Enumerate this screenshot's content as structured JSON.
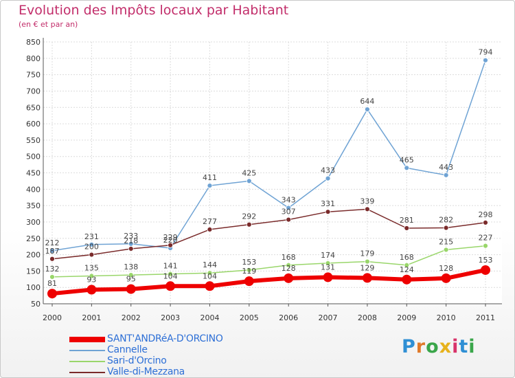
{
  "chart_data": {
    "type": "line",
    "title": "Evolution des Impôts locaux par Habitant",
    "subtitle": "(en € et par an)",
    "x": [
      "2000",
      "2001",
      "2002",
      "2003",
      "2004",
      "2005",
      "2006",
      "2007",
      "2008",
      "2009",
      "2010",
      "2011"
    ],
    "ylim": [
      50,
      850
    ],
    "yticks": [
      50,
      100,
      150,
      200,
      250,
      300,
      350,
      400,
      450,
      500,
      550,
      600,
      650,
      700,
      750,
      800,
      850
    ],
    "grid": true,
    "legend_position": "bottom-left",
    "series": [
      {
        "name": "SANT'ANDRéA-D'ORCINO",
        "color": "#ee0000",
        "width": 6,
        "marker": 7,
        "values": [
          81,
          93,
          95,
          104,
          104,
          119,
          128,
          131,
          129,
          124,
          128,
          153
        ]
      },
      {
        "name": "Cannelle",
        "color": "#6fa3d4",
        "width": 1.5,
        "marker": 3.5,
        "values": [
          212,
          231,
          233,
          220,
          411,
          425,
          343,
          433,
          644,
          465,
          443,
          794
        ]
      },
      {
        "name": "Sari-d'Orcino",
        "color": "#99d66a",
        "width": 1.5,
        "marker": 3.5,
        "values": [
          132,
          135,
          138,
          141,
          144,
          153,
          168,
          174,
          179,
          168,
          215,
          227
        ]
      },
      {
        "name": "Valle-di-Mezzana",
        "color": "#7a2b2b",
        "width": 1.5,
        "marker": 3.5,
        "values": [
          187,
          200,
          218,
          229,
          277,
          292,
          307,
          331,
          339,
          281,
          282,
          298
        ]
      }
    ]
  },
  "logo": {
    "text": "Proxiti"
  }
}
